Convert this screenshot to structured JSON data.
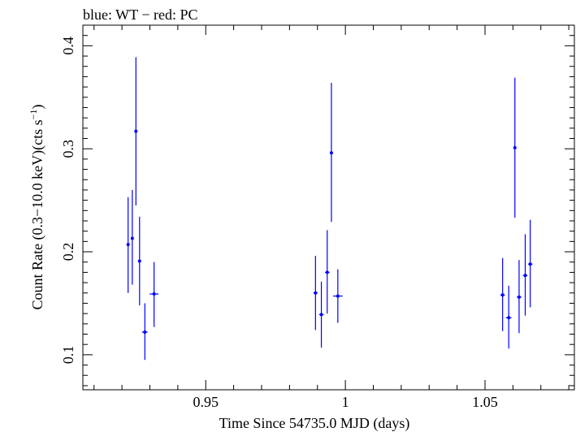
{
  "chart_data": {
    "type": "scatter",
    "title": "blue: WT − red: PC",
    "xlabel": "Time Since 54735.0 MJD (days)",
    "ylabel_main": "Count Rate (0.3−10.0 keV)(cts s",
    "ylabel_sup": "−1",
    "ylabel_close": ")",
    "xlim": [
      0.906,
      1.082
    ],
    "ylim": [
      0.066,
      0.42
    ],
    "x_ticks": [
      0.95,
      1.0,
      1.05
    ],
    "x_tick_labels": [
      "0.95",
      "1",
      "1.05"
    ],
    "y_ticks": [
      0.1,
      0.2,
      0.3,
      0.4
    ],
    "y_tick_labels": [
      "0.1",
      "0.2",
      "0.3",
      "0.4"
    ],
    "series": [
      {
        "color": "#0000ff",
        "points": [
          {
            "x": 0.9222,
            "xerr": 0.0004,
            "y": 0.207,
            "ylo": 0.16,
            "yhi": 0.253
          },
          {
            "x": 0.9237,
            "xerr": 0.0004,
            "y": 0.213,
            "ylo": 0.168,
            "yhi": 0.26
          },
          {
            "x": 0.925,
            "xerr": 0.0004,
            "y": 0.317,
            "ylo": 0.245,
            "yhi": 0.389
          },
          {
            "x": 0.9263,
            "xerr": 0.0004,
            "y": 0.191,
            "ylo": 0.148,
            "yhi": 0.234
          },
          {
            "x": 0.9282,
            "xerr": 0.001,
            "y": 0.122,
            "ylo": 0.095,
            "yhi": 0.15
          },
          {
            "x": 0.9315,
            "xerr": 0.0016,
            "y": 0.159,
            "ylo": 0.127,
            "yhi": 0.19
          },
          {
            "x": 0.9893,
            "xerr": 0.0007,
            "y": 0.16,
            "ylo": 0.124,
            "yhi": 0.196
          },
          {
            "x": 0.9914,
            "xerr": 0.0008,
            "y": 0.139,
            "ylo": 0.107,
            "yhi": 0.171
          },
          {
            "x": 0.9935,
            "xerr": 0.0008,
            "y": 0.18,
            "ylo": 0.14,
            "yhi": 0.221
          },
          {
            "x": 0.995,
            "xerr": 0.0004,
            "y": 0.296,
            "ylo": 0.229,
            "yhi": 0.364
          },
          {
            "x": 0.9973,
            "xerr": 0.0017,
            "y": 0.157,
            "ylo": 0.131,
            "yhi": 0.183
          },
          {
            "x": 1.0563,
            "xerr": 0.0008,
            "y": 0.158,
            "ylo": 0.123,
            "yhi": 0.194
          },
          {
            "x": 1.0585,
            "xerr": 0.001,
            "y": 0.136,
            "ylo": 0.106,
            "yhi": 0.167
          },
          {
            "x": 1.0607,
            "xerr": 0.0005,
            "y": 0.301,
            "ylo": 0.233,
            "yhi": 0.369
          },
          {
            "x": 1.0622,
            "xerr": 0.0008,
            "y": 0.156,
            "ylo": 0.121,
            "yhi": 0.192
          },
          {
            "x": 1.0644,
            "xerr": 0.0008,
            "y": 0.177,
            "ylo": 0.138,
            "yhi": 0.217
          },
          {
            "x": 1.0662,
            "xerr": 0.0008,
            "y": 0.188,
            "ylo": 0.146,
            "yhi": 0.231
          }
        ]
      }
    ],
    "grid": false,
    "legend": "none"
  }
}
